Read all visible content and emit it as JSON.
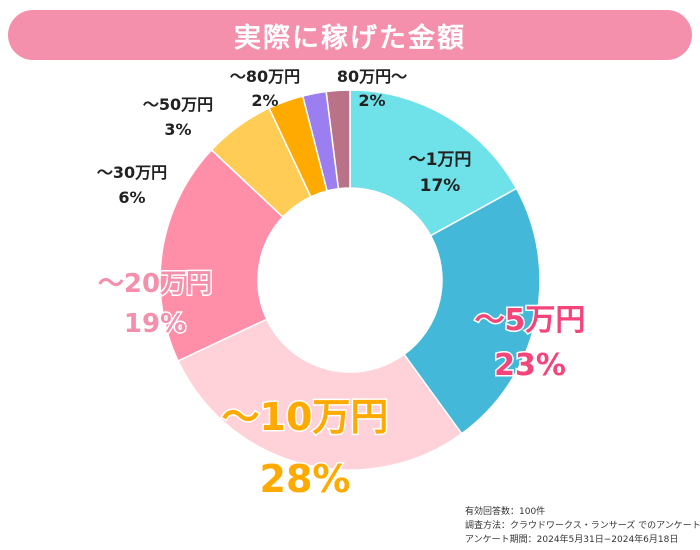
{
  "title": "実際に稼げた金額",
  "chart_data": {
    "type": "pie",
    "donut": true,
    "categories": [
      "〜1万円",
      "〜5万円",
      "〜10万円",
      "〜20万円",
      "〜30万円",
      "〜50万円",
      "〜80万円",
      "80万円〜"
    ],
    "values": [
      17,
      23,
      28,
      19,
      6,
      3,
      2,
      2
    ],
    "value_labels": [
      "17%",
      "23%",
      "28%",
      "19%",
      "6%",
      "3%",
      "2%",
      "2%"
    ],
    "colors": [
      "#6ee2e8",
      "#43b8d9",
      "#ffd1d9",
      "#ff8fa8",
      "#ffcc55",
      "#ffaa00",
      "#9b7ff0",
      "#b97288"
    ],
    "label_colors": [
      "#222222",
      "#f4457b",
      "#ffaa00",
      "#f48fac",
      "#222222",
      "#222222",
      "#222222",
      "#222222"
    ],
    "unit": "%"
  },
  "survey": {
    "respondents": "有効回答数：100件",
    "method": "調査方法：クラウドワークス・ランサーズ でのアンケート",
    "period": "アンケート期間：2024年5月31日−2024年6月18日"
  }
}
